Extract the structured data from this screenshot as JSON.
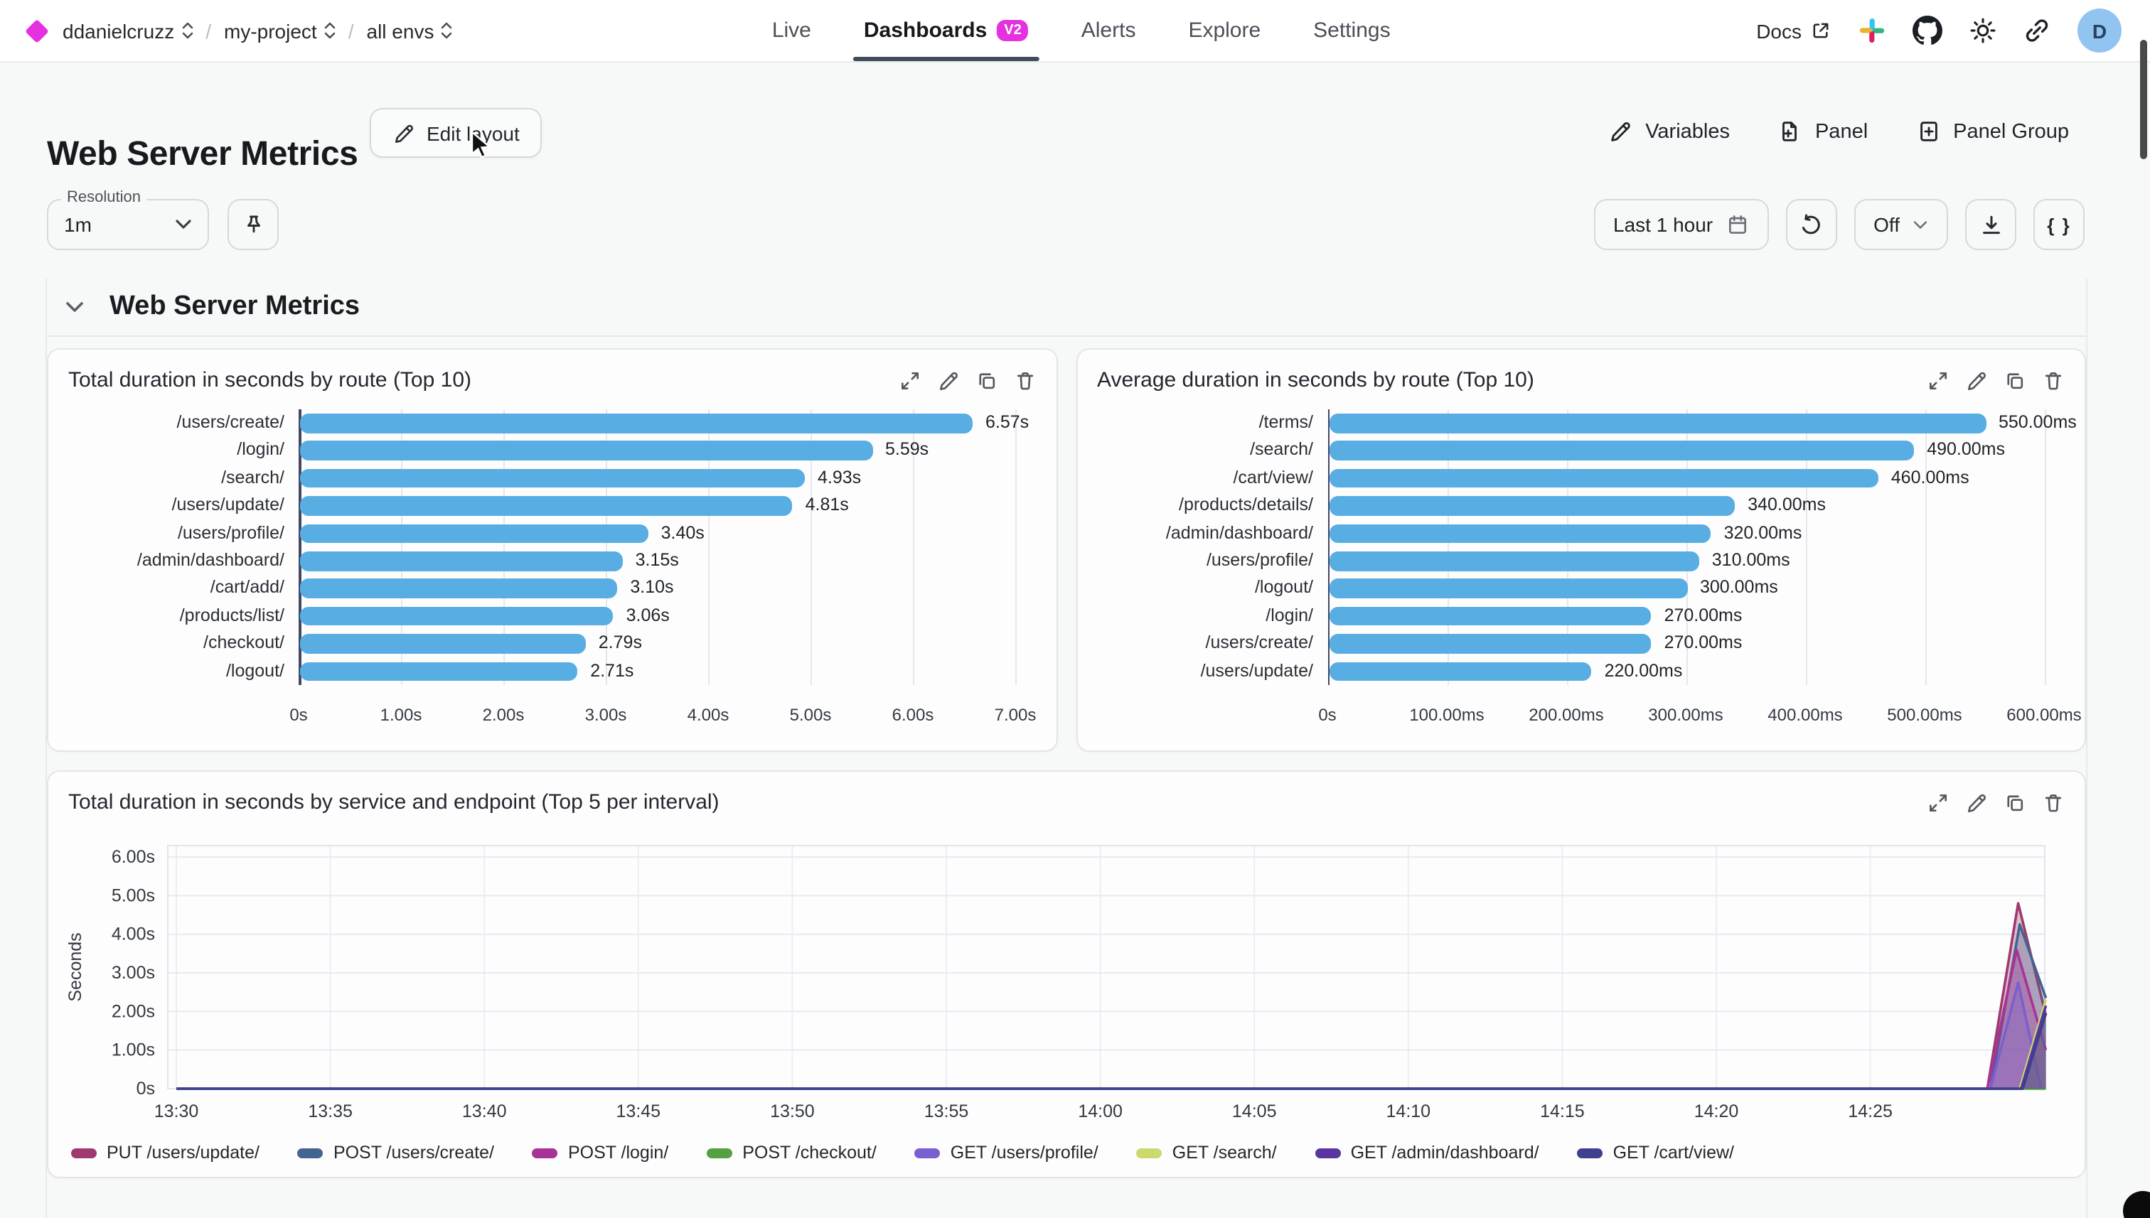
{
  "nav": {
    "breadcrumb": [
      {
        "label": "ddanielcruzz"
      },
      {
        "label": "my-project"
      },
      {
        "label": "all envs"
      }
    ],
    "tabs": [
      {
        "label": "Live",
        "active": false
      },
      {
        "label": "Dashboards",
        "badge": "V2",
        "active": true
      },
      {
        "label": "Alerts",
        "active": false
      },
      {
        "label": "Explore",
        "active": false
      },
      {
        "label": "Settings",
        "active": false
      }
    ],
    "docs_label": "Docs",
    "avatar_initial": "D"
  },
  "header": {
    "title": "Web Server Metrics",
    "edit_layout_label": "Edit layout",
    "variables_label": "Variables",
    "panel_label": "Panel",
    "panel_group_label": "Panel Group"
  },
  "controls": {
    "resolution_label": "Resolution",
    "resolution_value": "1m",
    "time_range_label": "Last 1 hour",
    "refresh_mode_label": "Off",
    "braces_label": "{ }"
  },
  "section": {
    "title": "Web Server Metrics"
  },
  "colors": {
    "accent_magenta": "#e531df",
    "bar_blue": "#58ade2",
    "tab_underline": "#3f4c5a",
    "axis_line": "#414868",
    "gridline": "#e6e6f0"
  },
  "chart_data": [
    {
      "type": "bar",
      "orientation": "horizontal",
      "title": "Total duration in seconds by route (Top 10)",
      "categories": [
        "/users/create/",
        "/login/",
        "/search/",
        "/users/update/",
        "/users/profile/",
        "/admin/dashboard/",
        "/cart/add/",
        "/products/list/",
        "/checkout/",
        "/logout/"
      ],
      "values": [
        6.57,
        5.59,
        4.93,
        4.81,
        3.4,
        3.15,
        3.1,
        3.06,
        2.79,
        2.71
      ],
      "value_labels": [
        "6.57s",
        "5.59s",
        "4.93s",
        "4.81s",
        "3.40s",
        "3.15s",
        "3.10s",
        "3.06s",
        "2.79s",
        "2.71s"
      ],
      "xlim": [
        0,
        7
      ],
      "x_ticks": [
        "0s",
        "1.00s",
        "2.00s",
        "3.00s",
        "4.00s",
        "5.00s",
        "6.00s",
        "7.00s"
      ],
      "bar_color": "#58ade2",
      "grid": true
    },
    {
      "type": "bar",
      "orientation": "horizontal",
      "title": "Average duration in seconds by route (Top 10)",
      "categories": [
        "/terms/",
        "/search/",
        "/cart/view/",
        "/products/details/",
        "/admin/dashboard/",
        "/users/profile/",
        "/logout/",
        "/login/",
        "/users/create/",
        "/users/update/"
      ],
      "values": [
        550,
        490,
        460,
        340,
        320,
        310,
        300,
        270,
        270,
        220
      ],
      "value_labels": [
        "550.00ms",
        "490.00ms",
        "460.00ms",
        "340.00ms",
        "320.00ms",
        "310.00ms",
        "300.00ms",
        "270.00ms",
        "270.00ms",
        "220.00ms"
      ],
      "xlim": [
        0,
        600
      ],
      "x_ticks": [
        "0s",
        "100.00ms",
        "200.00ms",
        "300.00ms",
        "400.00ms",
        "500.00ms",
        "600.00ms"
      ],
      "bar_color": "#58ade2",
      "grid": true
    },
    {
      "type": "area",
      "title": "Total duration in seconds by service and endpoint (Top 5 per interval)",
      "ylabel": "Seconds",
      "ylim": [
        0,
        6
      ],
      "y_ticks": [
        "0s",
        "1.00s",
        "2.00s",
        "3.00s",
        "4.00s",
        "5.00s",
        "6.00s"
      ],
      "x_ticks": [
        "13:30",
        "13:35",
        "13:40",
        "13:45",
        "13:50",
        "13:55",
        "14:00",
        "14:05",
        "14:10",
        "14:15",
        "14:20",
        "14:25"
      ],
      "x_domain_minutes": [
        0,
        60.7
      ],
      "x_tick_interval_minutes": 5,
      "grid": true,
      "legend_position": "bottom",
      "series": [
        {
          "name": "PUT /users/update/",
          "color": "#9e3a6d",
          "points": [
            [
              0,
              0
            ],
            [
              58.8,
              0
            ],
            [
              59.8,
              4.8
            ],
            [
              60.7,
              1.9
            ]
          ]
        },
        {
          "name": "POST /users/create/",
          "color": "#41658f",
          "points": [
            [
              0,
              0
            ],
            [
              58.9,
              0
            ],
            [
              59.85,
              4.25
            ],
            [
              60.7,
              2.35
            ]
          ]
        },
        {
          "name": "POST /login/",
          "color": "#a93395",
          "points": [
            [
              0,
              0
            ],
            [
              58.8,
              0
            ],
            [
              59.75,
              3.6
            ],
            [
              60.7,
              1.0
            ]
          ]
        },
        {
          "name": "POST /checkout/",
          "color": "#55a043",
          "points": [
            [
              0,
              0
            ],
            [
              60.7,
              0
            ]
          ]
        },
        {
          "name": "GET /users/profile/",
          "color": "#7a5fd0",
          "points": [
            [
              0,
              0
            ],
            [
              58.9,
              0
            ],
            [
              59.8,
              2.75
            ],
            [
              60.55,
              0
            ]
          ]
        },
        {
          "name": "GET /search/",
          "color": "#ccd96e",
          "points": [
            [
              0,
              0
            ],
            [
              59.85,
              0
            ],
            [
              60.7,
              2.3
            ]
          ]
        },
        {
          "name": "GET /admin/dashboard/",
          "color": "#5a35a0",
          "points": [
            [
              0,
              0
            ],
            [
              59.9,
              0
            ],
            [
              60.7,
              2.15
            ]
          ]
        },
        {
          "name": "GET /cart/view/",
          "color": "#3f3f8f",
          "points": [
            [
              0,
              0
            ],
            [
              59.95,
              0
            ],
            [
              60.7,
              1.95
            ]
          ]
        }
      ]
    }
  ]
}
